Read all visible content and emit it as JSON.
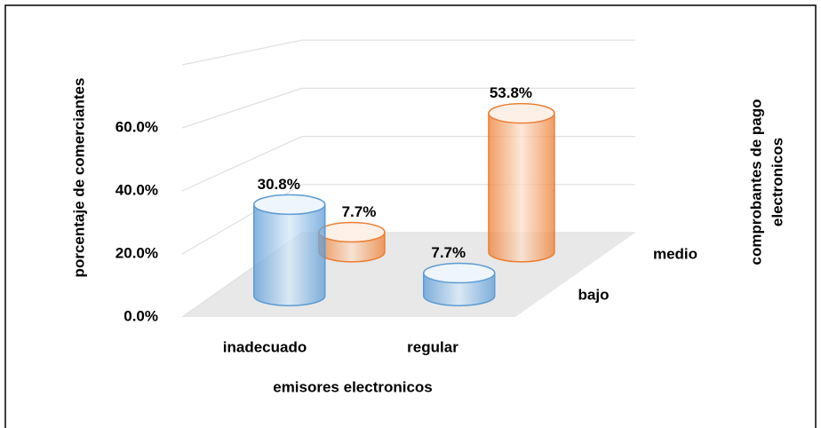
{
  "chart_data": {
    "type": "bar3d",
    "categories": [
      "inadecuado",
      "regular"
    ],
    "series": [
      {
        "name": "bajo",
        "color": "#5b9bd5",
        "values": [
          30.8,
          7.7
        ],
        "value_labels": [
          "30.8%",
          "7.7%"
        ]
      },
      {
        "name": "medio",
        "color": "#ed7d31",
        "values": [
          7.7,
          53.8
        ],
        "value_labels": [
          "7.7%",
          "53.8%"
        ]
      }
    ],
    "ylim": [
      0,
      80
    ],
    "yticks": [
      {
        "value": 0,
        "label": "0.0%"
      },
      {
        "value": 20,
        "label": "20.0%"
      },
      {
        "value": 40,
        "label": "40.0%"
      },
      {
        "value": 60,
        "label": "60.0%"
      }
    ],
    "y_label": "porcentaje de comerciantes",
    "x_label": "emisores electronicos",
    "z_label": [
      "comprobantes de pago",
      "electronicos"
    ],
    "grid": true
  }
}
